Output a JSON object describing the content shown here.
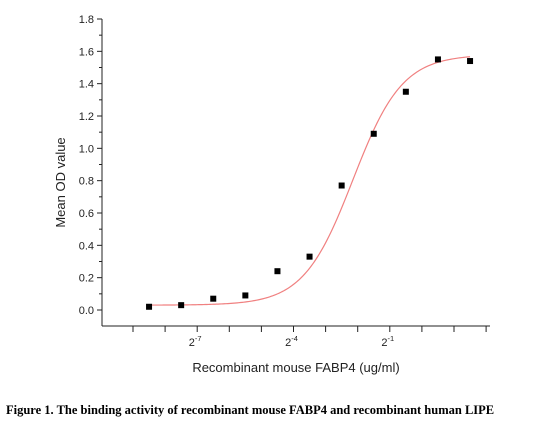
{
  "chart_data": {
    "type": "scatter",
    "xlabel": "Recombinant mouse FABP4 (ug/ml)",
    "ylabel": "Mean OD value",
    "ylim": [
      0,
      1.8
    ],
    "yticks": [
      0.0,
      0.2,
      0.4,
      0.6,
      0.8,
      1.0,
      1.2,
      1.4,
      1.6,
      1.8
    ],
    "ytick_labels": [
      "0.0",
      "0.2",
      "0.4",
      "0.6",
      "0.8",
      "1.0",
      "1.2",
      "1.4",
      "1.6",
      "1.8"
    ],
    "x_scale": "log2",
    "xlim_log2": [
      -9,
      2
    ],
    "xticks_log2": [
      -7,
      -4,
      -1
    ],
    "xtick_labels": [
      {
        "base": "2",
        "exp": "-7"
      },
      {
        "base": "2",
        "exp": "-4"
      },
      {
        "base": "2",
        "exp": "-1"
      }
    ],
    "series": [
      {
        "marker": "square",
        "color": "#000000",
        "x_log2": [
          -8.5,
          -7.5,
          -6.5,
          -5.5,
          -4.5,
          -3.5,
          -2.5,
          -1.5,
          -0.5,
          0.5,
          1.5
        ],
        "y": [
          0.02,
          0.03,
          0.07,
          0.09,
          0.24,
          0.33,
          0.77,
          1.09,
          1.35,
          1.55,
          1.54
        ]
      }
    ],
    "fit_curve": {
      "type": "4PL",
      "color": "#f08080",
      "bottom": 0.03,
      "top": 1.58,
      "midpoint_log2": -2.15,
      "slope": 1.3
    },
    "grid": false,
    "legend": "none"
  },
  "caption": "Figure 1. The binding activity of recombinant mouse FABP4 and recombinant human LIPE"
}
